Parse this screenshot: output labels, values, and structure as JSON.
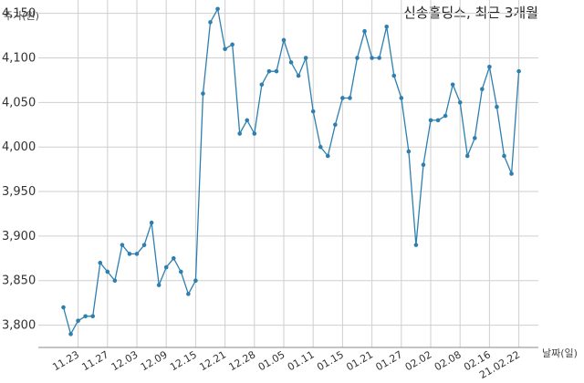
{
  "chart_data": {
    "type": "line",
    "title": "신송홀딩스, 최근 3개월",
    "ylabel": "주가(원)",
    "xlabel": "날짜(일)",
    "ylim": [
      3775,
      4165
    ],
    "yticks": [
      3800,
      3850,
      3900,
      3950,
      4000,
      4050,
      4100,
      4150
    ],
    "ytick_labels": [
      "3,800",
      "3,850",
      "3,900",
      "3,950",
      "4,000",
      "4,050",
      "4,100",
      "4,150"
    ],
    "grid": true,
    "line_color": "#2e7fb0",
    "series": [
      {
        "values": [
          3820,
          3790,
          3805,
          3810,
          3810,
          3870,
          3860,
          3850,
          3890,
          3880,
          3880,
          3890,
          3915,
          3845,
          3865,
          3875,
          3860,
          3835,
          3850,
          4060,
          4140,
          4155,
          4110,
          4115,
          4015,
          4030,
          4015,
          4070,
          4085,
          4085,
          4120,
          4095,
          4080,
          4100,
          4040,
          4000,
          3990,
          4025,
          4055,
          4055,
          4100,
          4130,
          4100,
          4100,
          4135,
          4080,
          4055,
          3995,
          3890,
          3980,
          4030,
          4030,
          4035,
          4070,
          4050,
          3990,
          4010,
          4065,
          4090,
          4045,
          3990,
          3970,
          4085
        ]
      }
    ],
    "x_tick_labels": [
      {
        "label": "11.23",
        "index": 2
      },
      {
        "label": "11.27",
        "index": 6
      },
      {
        "label": "12.03",
        "index": 10
      },
      {
        "label": "12.09",
        "index": 14
      },
      {
        "label": "12.15",
        "index": 18
      },
      {
        "label": "12.21",
        "index": 22
      },
      {
        "label": "12.28",
        "index": 26
      },
      {
        "label": "01.05",
        "index": 30
      },
      {
        "label": "01.11",
        "index": 34
      },
      {
        "label": "01.15",
        "index": 38
      },
      {
        "label": "01.21",
        "index": 42
      },
      {
        "label": "01.27",
        "index": 46
      },
      {
        "label": "02.02",
        "index": 50
      },
      {
        "label": "02.08",
        "index": 54
      },
      {
        "label": "02.16",
        "index": 58
      },
      {
        "label": "21.02.22",
        "index": 62
      }
    ]
  }
}
